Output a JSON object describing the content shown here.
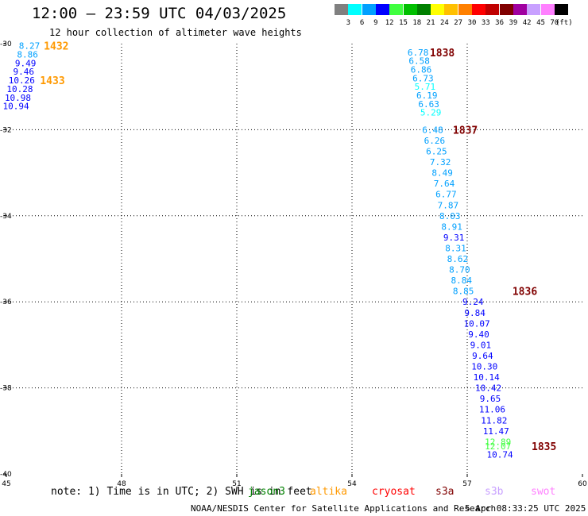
{
  "title": "12:00 – 23:59 UTC 04/03/2025",
  "subtitle": "12 hour collection of altimeter wave heights",
  "legend": {
    "unit": "(ft)",
    "labels": [
      "3",
      "6",
      "9",
      "12",
      "15",
      "18",
      "21",
      "24",
      "27",
      "30",
      "33",
      "36",
      "39",
      "42",
      "45",
      "70"
    ],
    "colors": [
      "#808080",
      "#00ffff",
      "#00a0ff",
      "#0000ff",
      "#40ff40",
      "#00c000",
      "#008000",
      "#ffff00",
      "#ffc000",
      "#ff8000",
      "#ff0000",
      "#c00000",
      "#800000",
      "#a000a0",
      "#c8a0ff",
      "#ff80ff",
      "#000000"
    ]
  },
  "map": {
    "lon_min": 45,
    "lon_max": 60,
    "lat_min": -40,
    "lat_max": -30,
    "lon_ticks": [
      45,
      48,
      51,
      54,
      57,
      60
    ],
    "lat_ticks": [
      -30,
      -32,
      -34,
      -36,
      -38,
      -40
    ]
  },
  "chart_data": {
    "type": "scatter",
    "x_range": [
      45,
      60
    ],
    "y_range": [
      -40,
      -30
    ],
    "tracks": [
      {
        "time": "1432",
        "time_lon": 46.3,
        "time_lat": -30.05,
        "time_color": "#ff9900",
        "points": [
          {
            "lon": 45.6,
            "lat": -30.05,
            "v": "8.27",
            "c": "#00a0ff"
          },
          {
            "lon": 45.55,
            "lat": -30.25,
            "v": "8.86",
            "c": "#00a0ff"
          },
          {
            "lon": 45.5,
            "lat": -30.45,
            "v": "9.49",
            "c": "#0000ff"
          },
          {
            "lon": 45.45,
            "lat": -30.65,
            "v": "9.46",
            "c": "#0000ff"
          },
          {
            "lon": 45.4,
            "lat": -30.85,
            "v": "10.26",
            "c": "#0000ff"
          },
          {
            "lon": 45.35,
            "lat": -31.05,
            "v": "10.28",
            "c": "#0000ff"
          },
          {
            "lon": 45.3,
            "lat": -31.25,
            "v": "10.98",
            "c": "#0000ff"
          },
          {
            "lon": 45.25,
            "lat": -31.45,
            "v": "10.94",
            "c": "#0000ff"
          }
        ]
      },
      {
        "time": "1433",
        "time_lon": 46.2,
        "time_lat": -30.85,
        "time_color": "#ff9900",
        "points": []
      },
      {
        "time": "1838",
        "time_lon": 56.35,
        "time_lat": -30.2,
        "time_color": "#800000",
        "points": [
          {
            "lon": 55.72,
            "lat": -30.2,
            "v": "6.78",
            "c": "#00a0ff"
          },
          {
            "lon": 55.75,
            "lat": -30.4,
            "v": "6.58",
            "c": "#00a0ff"
          },
          {
            "lon": 55.8,
            "lat": -30.6,
            "v": "6.86",
            "c": "#00a0ff"
          },
          {
            "lon": 55.85,
            "lat": -30.8,
            "v": "6.73",
            "c": "#00a0ff"
          },
          {
            "lon": 55.9,
            "lat": -31.0,
            "v": "5.71",
            "c": "#00ffff"
          },
          {
            "lon": 55.95,
            "lat": -31.2,
            "v": "6.19",
            "c": "#00a0ff"
          },
          {
            "lon": 56.0,
            "lat": -31.4,
            "v": "6.63",
            "c": "#00a0ff"
          },
          {
            "lon": 56.05,
            "lat": -31.6,
            "v": "5.29",
            "c": "#00ffff"
          }
        ]
      },
      {
        "time": "1837",
        "time_lon": 56.95,
        "time_lat": -32.0,
        "time_color": "#800000",
        "points": [
          {
            "lon": 56.1,
            "lat": -32.0,
            "v": "6.48",
            "c": "#00a0ff"
          },
          {
            "lon": 56.15,
            "lat": -32.25,
            "v": "6.26",
            "c": "#00a0ff"
          },
          {
            "lon": 56.2,
            "lat": -32.5,
            "v": "6.25",
            "c": "#00a0ff"
          },
          {
            "lon": 56.3,
            "lat": -32.75,
            "v": "7.32",
            "c": "#00a0ff"
          },
          {
            "lon": 56.35,
            "lat": -33.0,
            "v": "8.49",
            "c": "#00a0ff"
          },
          {
            "lon": 56.4,
            "lat": -33.25,
            "v": "7.64",
            "c": "#00a0ff"
          },
          {
            "lon": 56.45,
            "lat": -33.5,
            "v": "6.77",
            "c": "#00a0ff"
          },
          {
            "lon": 56.5,
            "lat": -33.75,
            "v": "7.87",
            "c": "#00a0ff"
          },
          {
            "lon": 56.55,
            "lat": -34.0,
            "v": "8.03",
            "c": "#00a0ff"
          },
          {
            "lon": 56.6,
            "lat": -34.25,
            "v": "8.91",
            "c": "#00a0ff"
          },
          {
            "lon": 56.65,
            "lat": -34.5,
            "v": "9.31",
            "c": "#0000ff"
          },
          {
            "lon": 56.7,
            "lat": -34.75,
            "v": "8.31",
            "c": "#00a0ff"
          },
          {
            "lon": 56.75,
            "lat": -35.0,
            "v": "8.62",
            "c": "#00a0ff"
          },
          {
            "lon": 56.8,
            "lat": -35.25,
            "v": "8.70",
            "c": "#00a0ff"
          },
          {
            "lon": 56.85,
            "lat": -35.5,
            "v": "8.84",
            "c": "#00a0ff"
          },
          {
            "lon": 56.9,
            "lat": -35.75,
            "v": "8.85",
            "c": "#00a0ff"
          }
        ]
      },
      {
        "time": "1836",
        "time_lon": 58.5,
        "time_lat": -35.75,
        "time_color": "#800000",
        "points": [
          {
            "lon": 57.15,
            "lat": -36.0,
            "v": "9.24",
            "c": "#0000ff"
          },
          {
            "lon": 57.2,
            "lat": -36.25,
            "v": "9.84",
            "c": "#0000ff"
          },
          {
            "lon": 57.25,
            "lat": -36.5,
            "v": "10.07",
            "c": "#0000ff"
          },
          {
            "lon": 57.3,
            "lat": -36.75,
            "v": "9.40",
            "c": "#0000ff"
          },
          {
            "lon": 57.35,
            "lat": -37.0,
            "v": "9.01",
            "c": "#0000ff"
          },
          {
            "lon": 57.4,
            "lat": -37.25,
            "v": "9.64",
            "c": "#0000ff"
          },
          {
            "lon": 57.45,
            "lat": -37.5,
            "v": "10.30",
            "c": "#0000ff"
          },
          {
            "lon": 57.5,
            "lat": -37.75,
            "v": "10.14",
            "c": "#0000ff"
          },
          {
            "lon": 57.55,
            "lat": -38.0,
            "v": "10.42",
            "c": "#0000ff"
          },
          {
            "lon": 57.6,
            "lat": -38.25,
            "v": "9.65",
            "c": "#0000ff"
          },
          {
            "lon": 57.65,
            "lat": -38.5,
            "v": "11.06",
            "c": "#0000ff"
          },
          {
            "lon": 57.7,
            "lat": -38.75,
            "v": "11.82",
            "c": "#0000ff"
          },
          {
            "lon": 57.75,
            "lat": -39.0,
            "v": "11.47",
            "c": "#0000ff"
          },
          {
            "lon": 57.8,
            "lat": -39.25,
            "v": "12.89",
            "c": "#40ff40"
          },
          {
            "lon": 57.8,
            "lat": -39.35,
            "v": "12.07",
            "c": "#40ff40"
          },
          {
            "lon": 57.85,
            "lat": -39.55,
            "v": "10.74",
            "c": "#0000ff"
          }
        ]
      },
      {
        "time": "1835",
        "time_lon": 59.0,
        "time_lat": -39.35,
        "time_color": "#800000",
        "points": []
      }
    ]
  },
  "note": "note: 1) Time is in UTC; 2) SWH is in feet",
  "satellites": [
    {
      "name": "jason3",
      "color": "#008000"
    },
    {
      "name": "altika",
      "color": "#ff9900"
    },
    {
      "name": "cryosat",
      "color": "#ff0000"
    },
    {
      "name": "s3a",
      "color": "#800000"
    },
    {
      "name": "s3b",
      "color": "#c8a0ff"
    },
    {
      "name": "swot",
      "color": "#ff80ff"
    }
  ],
  "footer": {
    "org": "NOAA/NESDIS Center for Satellite Applications and Research",
    "date": "5 Apr 08:33:25 UTC 2025"
  }
}
